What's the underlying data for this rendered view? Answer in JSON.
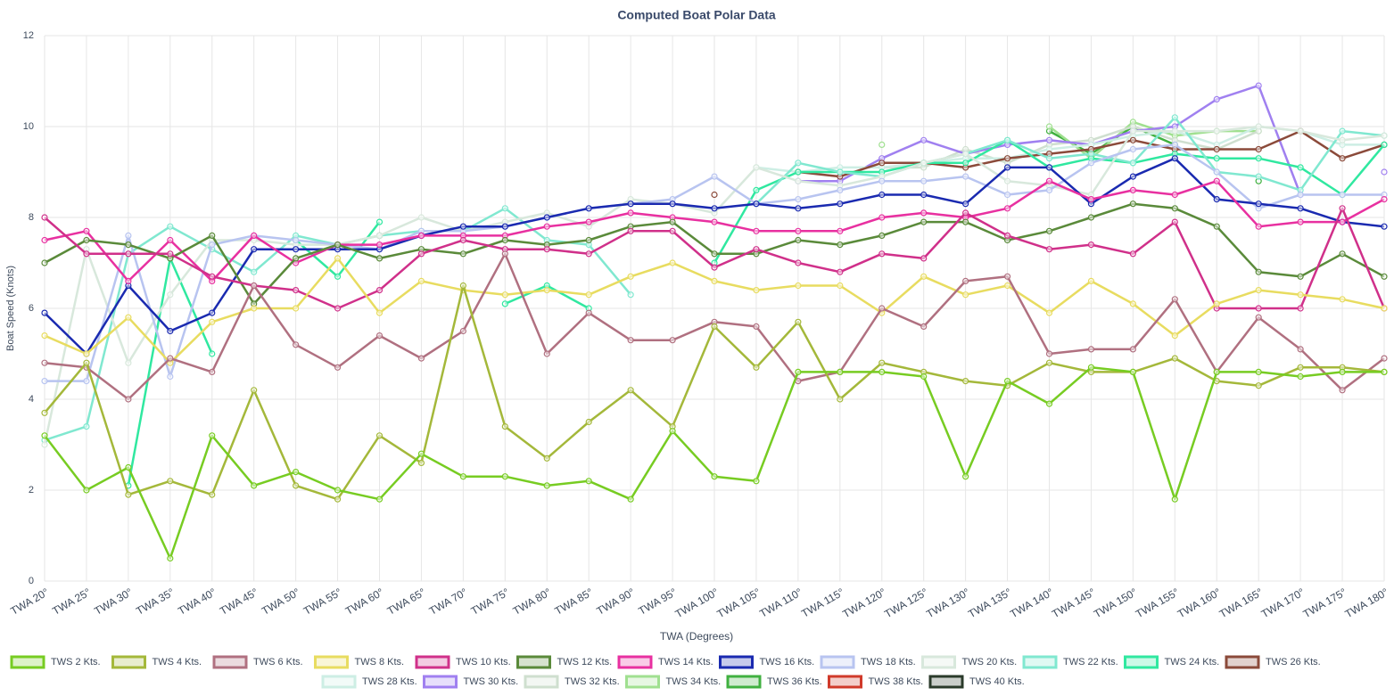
{
  "chart_data": {
    "type": "line",
    "title": "Computed Boat Polar Data",
    "x_label": "TWA (Degrees)",
    "y_label": "Boat Speed (Knots)",
    "categories": [
      "TWA 20°",
      "TWA 25°",
      "TWA 30°",
      "TWA 35°",
      "TWA 40°",
      "TWA 45°",
      "TWA 50°",
      "TWA 55°",
      "TWA 60°",
      "TWA 65°",
      "TWA 70°",
      "TWA 75°",
      "TWA 80°",
      "TWA 85°",
      "TWA 90°",
      "TWA 95°",
      "TWA 100°",
      "TWA 105°",
      "TWA 110°",
      "TWA 115°",
      "TWA 120°",
      "TWA 125°",
      "TWA 130°",
      "TWA 135°",
      "TWA 140°",
      "TWA 145°",
      "TWA 150°",
      "TWA 155°",
      "TWA 160°",
      "TWA 165°",
      "TWA 170°",
      "TWA 175°",
      "TWA 180°"
    ],
    "ylim": [
      0,
      12
    ],
    "yticks": [
      0,
      2,
      4,
      6,
      8,
      10,
      12
    ],
    "grid": true,
    "series": [
      {
        "name": "TWS 2 Kts.",
        "color": "#77cc22",
        "values": [
          3.2,
          2.0,
          2.5,
          0.5,
          3.2,
          2.1,
          2.4,
          2.0,
          1.8,
          2.8,
          2.3,
          2.3,
          2.1,
          2.2,
          1.8,
          3.3,
          2.3,
          2.2,
          4.6,
          4.6,
          4.6,
          4.5,
          2.3,
          4.4,
          3.9,
          4.7,
          4.6,
          1.8,
          4.6,
          4.6,
          4.5,
          4.6,
          4.6
        ]
      },
      {
        "name": "TWS 4 Kts.",
        "color": "#a4b83a",
        "values": [
          3.7,
          4.8,
          1.9,
          2.2,
          1.9,
          4.2,
          2.1,
          1.8,
          3.2,
          2.6,
          6.5,
          3.4,
          2.7,
          3.5,
          4.2,
          3.4,
          5.6,
          4.7,
          5.7,
          4.0,
          4.8,
          4.6,
          4.4,
          4.3,
          4.8,
          4.6,
          4.6,
          4.9,
          4.4,
          4.3,
          4.7,
          4.7,
          4.6
        ]
      },
      {
        "name": "TWS 6 Kts.",
        "color": "#b07080",
        "values": [
          4.8,
          4.7,
          4.0,
          4.9,
          4.6,
          6.5,
          5.2,
          4.7,
          5.4,
          4.9,
          5.5,
          7.2,
          5.0,
          5.9,
          5.3,
          5.3,
          5.7,
          5.6,
          4.4,
          4.6,
          6.0,
          5.6,
          6.6,
          6.7,
          5.0,
          5.1,
          5.1,
          6.2,
          4.6,
          5.8,
          5.1,
          4.2,
          4.9
        ]
      },
      {
        "name": "TWS 8 Kts.",
        "color": "#e8dc60",
        "values": [
          5.4,
          5.0,
          5.8,
          4.8,
          5.7,
          6.0,
          6.0,
          7.1,
          5.9,
          6.6,
          6.4,
          6.3,
          6.4,
          6.3,
          6.7,
          7.0,
          6.6,
          6.4,
          6.5,
          6.5,
          5.9,
          6.7,
          6.3,
          6.5,
          5.9,
          6.6,
          6.1,
          5.4,
          6.1,
          6.4,
          6.3,
          6.2,
          6.0
        ]
      },
      {
        "name": "TWS 10 Kts.",
        "color": "#d0308a",
        "values": [
          8.0,
          7.2,
          7.2,
          7.2,
          6.7,
          6.5,
          6.4,
          6.0,
          6.4,
          7.2,
          7.5,
          7.3,
          7.3,
          7.2,
          7.7,
          7.7,
          6.9,
          7.3,
          7.0,
          6.8,
          7.2,
          7.1,
          8.1,
          7.6,
          7.3,
          7.4,
          7.2,
          7.9,
          6.0,
          6.0,
          6.0,
          8.2,
          6.0
        ]
      },
      {
        "name": "TWS 12 Kts.",
        "color": "#5a8a3a",
        "values": [
          7.0,
          7.5,
          7.4,
          7.1,
          7.6,
          6.1,
          7.1,
          7.4,
          7.1,
          7.3,
          7.2,
          7.5,
          7.4,
          7.5,
          7.8,
          7.9,
          7.2,
          7.2,
          7.5,
          7.4,
          7.6,
          7.9,
          7.9,
          7.5,
          7.7,
          8.0,
          8.3,
          8.2,
          7.8,
          6.8,
          6.7,
          7.2,
          6.7
        ]
      },
      {
        "name": "TWS 14 Kts.",
        "color": "#e830a0",
        "values": [
          7.5,
          7.7,
          6.6,
          7.5,
          6.6,
          7.6,
          7.0,
          7.4,
          7.4,
          7.6,
          7.6,
          7.6,
          7.8,
          7.9,
          8.1,
          8.0,
          7.9,
          7.7,
          7.7,
          7.7,
          8.0,
          8.1,
          8.0,
          8.2,
          8.8,
          8.4,
          8.6,
          8.5,
          8.8,
          7.8,
          7.9,
          7.9,
          8.4
        ]
      },
      {
        "name": "TWS 16 Kts.",
        "color": "#1a2ab0",
        "values": [
          5.9,
          5.0,
          6.5,
          5.5,
          5.9,
          7.3,
          7.3,
          7.3,
          7.3,
          7.6,
          7.8,
          7.8,
          8.0,
          8.2,
          8.3,
          8.3,
          8.2,
          8.3,
          8.2,
          8.3,
          8.5,
          8.5,
          8.3,
          9.1,
          9.1,
          8.3,
          8.9,
          9.3,
          8.4,
          8.3,
          8.2,
          7.9,
          7.8
        ]
      },
      {
        "name": "TWS 18 Kts.",
        "color": "#b8c4f0",
        "values": [
          4.4,
          4.4,
          7.6,
          4.5,
          7.4,
          7.6,
          7.5,
          7.4,
          7.3,
          7.7,
          7.7,
          7.8,
          8.0,
          8.2,
          8.3,
          8.4,
          8.9,
          8.3,
          8.4,
          8.6,
          8.8,
          8.8,
          8.9,
          8.5,
          8.6,
          9.2,
          9.5,
          9.6,
          9.0,
          8.2,
          8.5,
          8.5,
          8.5
        ]
      },
      {
        "name": "TWS 20 Kts.",
        "color": "#d8e8dc",
        "values": [
          3.0,
          7.3,
          4.8,
          6.3,
          7.5,
          7.5,
          7.4,
          7.4,
          7.6,
          8.0,
          7.7,
          7.9,
          8.1,
          7.8,
          8.4,
          8.3,
          8.1,
          9.1,
          8.8,
          8.7,
          8.9,
          9.2,
          9.4,
          8.8,
          8.7,
          8.5,
          9.9,
          9.9,
          9.9,
          10.0,
          9.9,
          9.7,
          9.8
        ]
      },
      {
        "name": "TWS 22 Kts.",
        "color": "#80e8d0",
        "values": [
          3.1,
          3.4,
          7.2,
          7.8,
          7.3,
          6.8,
          7.6,
          7.4,
          7.6,
          7.7,
          7.7,
          8.2,
          7.5,
          7.4,
          6.3,
          null,
          null,
          8.3,
          9.2,
          9.0,
          8.9,
          9.2,
          9.4,
          9.7,
          9.3,
          9.4,
          9.2,
          10.2,
          9.0,
          8.9,
          8.6,
          9.9,
          9.8
        ]
      },
      {
        "name": "TWS 24 Kts.",
        "color": "#30e8a0",
        "values": [
          null,
          null,
          2.1,
          7.1,
          5.0,
          null,
          7.5,
          6.7,
          7.9,
          null,
          null,
          6.1,
          6.5,
          6.0,
          null,
          null,
          7.0,
          8.6,
          9.0,
          9.0,
          9.0,
          9.2,
          9.2,
          9.7,
          9.1,
          9.3,
          9.2,
          9.4,
          9.3,
          9.3,
          9.1,
          8.5,
          9.6
        ]
      },
      {
        "name": "TWS 26 Kts.",
        "color": "#8b4a3a",
        "values": [
          null,
          null,
          null,
          null,
          null,
          null,
          null,
          null,
          7.6,
          null,
          null,
          null,
          null,
          null,
          null,
          null,
          8.5,
          null,
          9.0,
          8.9,
          9.2,
          9.2,
          9.1,
          9.3,
          9.4,
          9.5,
          9.7,
          9.5,
          9.5,
          9.5,
          9.9,
          9.3,
          9.6
        ]
      },
      {
        "name": "TWS 28 Kts.",
        "color": "#cdeee4",
        "values": [
          null,
          null,
          null,
          null,
          null,
          null,
          null,
          null,
          null,
          null,
          null,
          null,
          null,
          null,
          null,
          null,
          null,
          9.1,
          9.0,
          9.1,
          9.1,
          9.2,
          9.3,
          9.3,
          9.5,
          9.6,
          9.8,
          9.9,
          9.6,
          10.0,
          9.9,
          9.6,
          9.6
        ]
      },
      {
        "name": "TWS 30 Kts.",
        "color": "#a080f0",
        "values": [
          null,
          null,
          null,
          null,
          null,
          null,
          null,
          null,
          null,
          null,
          null,
          null,
          null,
          null,
          null,
          null,
          null,
          null,
          8.8,
          8.8,
          9.3,
          9.7,
          9.4,
          9.6,
          9.7,
          9.6,
          9.9,
          10.0,
          10.6,
          10.9,
          8.5,
          null,
          9.0
        ]
      },
      {
        "name": "TWS 32 Kts.",
        "color": "#cfdfcf",
        "values": [
          null,
          null,
          null,
          null,
          null,
          null,
          null,
          null,
          null,
          null,
          null,
          null,
          null,
          null,
          null,
          null,
          null,
          null,
          null,
          null,
          9.1,
          9.1,
          9.5,
          9.2,
          9.6,
          9.7,
          10.0,
          9.7,
          9.5,
          9.9,
          null,
          null,
          null
        ]
      },
      {
        "name": "TWS 34 Kts.",
        "color": "#a0e090",
        "values": [
          null,
          null,
          null,
          null,
          null,
          null,
          null,
          null,
          null,
          null,
          null,
          null,
          null,
          null,
          null,
          null,
          null,
          null,
          null,
          null,
          9.6,
          null,
          null,
          null,
          10.0,
          9.3,
          10.1,
          9.8,
          9.9,
          9.9,
          null,
          null,
          null
        ]
      },
      {
        "name": "TWS 36 Kts.",
        "color": "#40b040",
        "values": [
          null,
          null,
          null,
          null,
          null,
          null,
          null,
          null,
          null,
          null,
          null,
          null,
          null,
          null,
          null,
          null,
          null,
          null,
          null,
          null,
          null,
          null,
          null,
          null,
          9.9,
          9.4,
          10.0,
          9.6,
          null,
          8.8,
          null,
          null,
          null
        ]
      },
      {
        "name": "TWS 38 Kts.",
        "color": "#d03a2a",
        "values": [
          null,
          null,
          null,
          null,
          null,
          null,
          null,
          null,
          null,
          null,
          null,
          null,
          null,
          null,
          null,
          null,
          null,
          null,
          null,
          null,
          null,
          null,
          null,
          null,
          null,
          null,
          null,
          null,
          null,
          null,
          null,
          null,
          null
        ]
      },
      {
        "name": "TWS 40 Kts.",
        "color": "#2a3a2a",
        "values": [
          null,
          null,
          null,
          null,
          null,
          null,
          null,
          null,
          null,
          null,
          null,
          null,
          null,
          null,
          null,
          null,
          null,
          null,
          null,
          null,
          null,
          null,
          null,
          null,
          null,
          null,
          null,
          null,
          null,
          null,
          null,
          null,
          null
        ]
      }
    ]
  }
}
